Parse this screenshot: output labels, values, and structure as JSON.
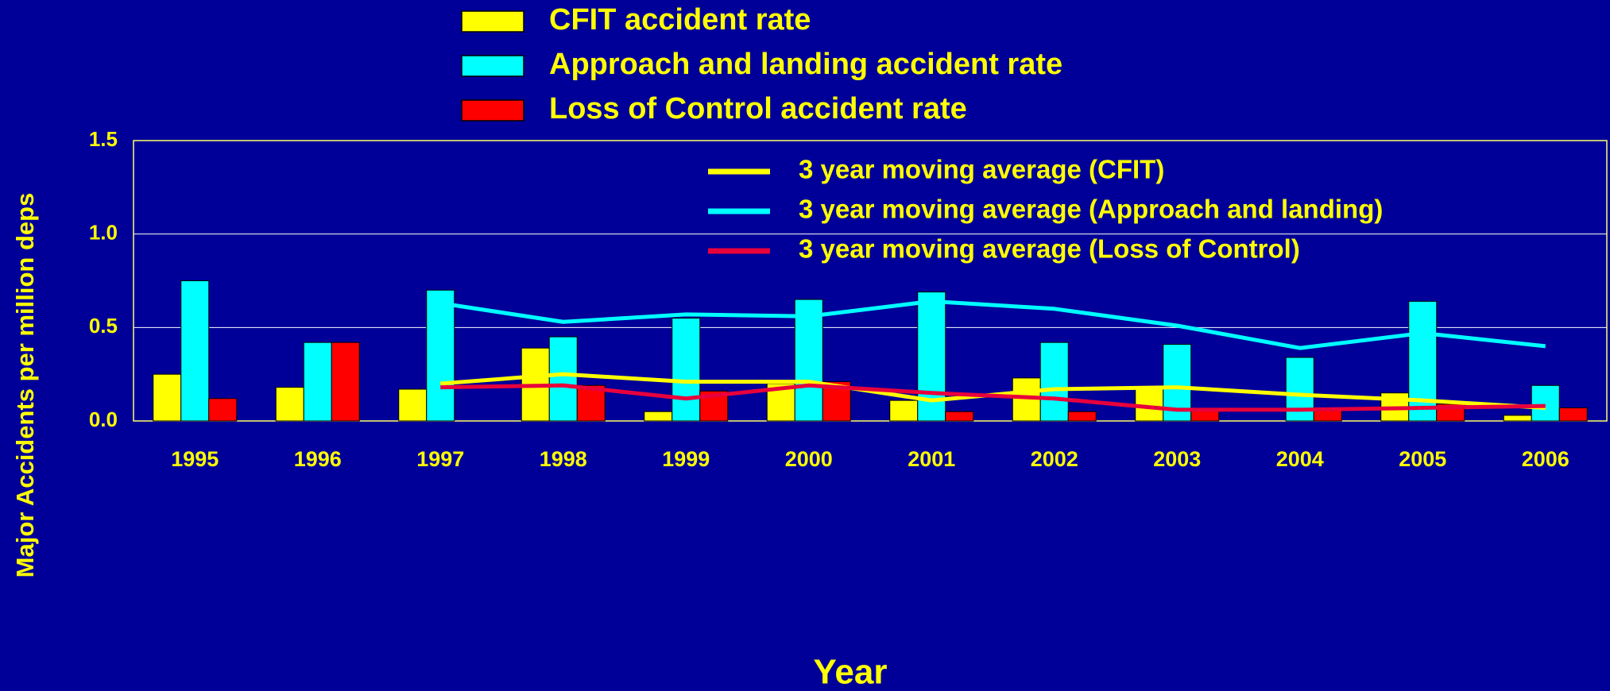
{
  "chart_data": {
    "type": "bar",
    "y_label": "Major  Accidents  per  million  deps",
    "x_label": "Year",
    "categories": [
      "1995",
      "1996",
      "1997",
      "1998",
      "1999",
      "2000",
      "2001",
      "2002",
      "2003",
      "2004",
      "2005",
      "2006"
    ],
    "series": [
      {
        "name": "CFIT accident rate",
        "color": "#ffff00",
        "type": "bar",
        "values": [
          0.25,
          0.18,
          0.17,
          0.39,
          0.05,
          0.2,
          0.11,
          0.23,
          0.18,
          0,
          0.15,
          0.03
        ]
      },
      {
        "name": "Approach and landing accident rate",
        "color": "#00ffff",
        "type": "bar",
        "values": [
          0.75,
          0.42,
          0.7,
          0.45,
          0.55,
          0.65,
          0.69,
          0.42,
          0.41,
          0.34,
          0.64,
          0.19
        ]
      },
      {
        "name": "Loss of Control accident rate",
        "color": "#ff0000",
        "type": "bar",
        "values": [
          0.12,
          0.42,
          0,
          0.19,
          0.16,
          0.21,
          0.05,
          0.05,
          0.06,
          0.06,
          0.09,
          0.07
        ]
      },
      {
        "name": "3 year moving average (CFIT)",
        "color": "#ffff00",
        "type": "line",
        "values": [
          null,
          null,
          0.2,
          0.25,
          0.21,
          0.21,
          0.11,
          0.17,
          0.18,
          0.14,
          0.11,
          0.07
        ]
      },
      {
        "name": "3 year moving average (Approach and landing)",
        "color": "#00ffff",
        "type": "line",
        "values": [
          null,
          null,
          0.63,
          0.53,
          0.57,
          0.56,
          0.64,
          0.6,
          0.51,
          0.39,
          0.47,
          0.4
        ]
      },
      {
        "name": "3 year moving average (Loss of Control)",
        "color": "#e8003c",
        "type": "line",
        "values": [
          null,
          null,
          0.18,
          0.19,
          0.12,
          0.19,
          0.15,
          0.12,
          0.06,
          0.06,
          0.07,
          0.08
        ]
      }
    ],
    "ylim": [
      0,
      1.5
    ],
    "yticks": [
      {
        "value": 0,
        "label": "0.0"
      },
      0.5,
      {
        "value": 1,
        "label": "1.0"
      },
      1.5
    ],
    "grid": true
  }
}
